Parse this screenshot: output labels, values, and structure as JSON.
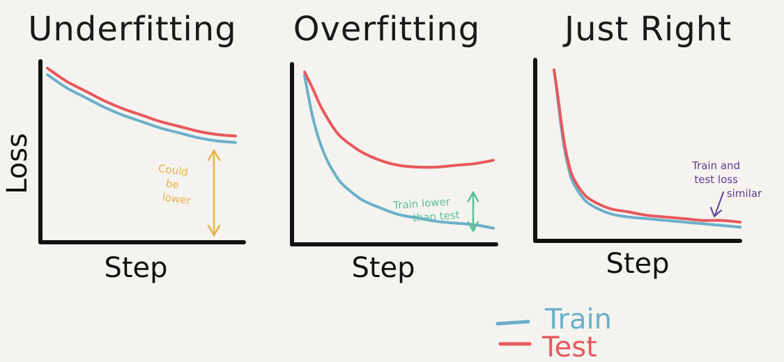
{
  "colors": {
    "train": "#6ab0c9",
    "test": "#e8585c",
    "axis": "#111111",
    "annot_under": "#e7b24a",
    "annot_over": "#5bbf98",
    "annot_right": "#5a3f8f",
    "background": "#f4f3ef"
  },
  "legend": {
    "train_label": "Train",
    "test_label": "Test"
  },
  "chart_data": [
    {
      "type": "line",
      "title": "Underfitting",
      "xlabel": "Step",
      "ylabel": "Loss",
      "grid": false,
      "x": [
        0,
        10,
        20,
        30,
        40,
        50,
        60,
        70,
        80,
        90,
        100
      ],
      "ylim": [
        0,
        100
      ],
      "series": [
        {
          "name": "Train",
          "values": [
            96,
            88,
            82,
            76,
            71,
            67,
            63,
            60,
            57,
            55,
            54
          ]
        },
        {
          "name": "Test",
          "values": [
            100,
            92,
            86,
            80,
            75,
            71,
            67,
            64,
            61,
            59,
            58
          ]
        }
      ],
      "annotations": [
        {
          "text": [
            "Could",
            "be",
            "lower"
          ],
          "color_key": "annot_under"
        }
      ]
    },
    {
      "type": "line",
      "title": "Overfitting",
      "xlabel": "Step",
      "ylabel": "",
      "grid": false,
      "x": [
        0,
        4,
        8,
        12,
        16,
        20,
        30,
        40,
        50,
        60,
        70,
        80,
        90,
        100
      ],
      "ylim": [
        0,
        100
      ],
      "series": [
        {
          "name": "Train",
          "values": [
            95,
            72,
            56,
            45,
            37,
            31,
            22,
            17,
            13,
            11,
            9,
            8,
            7,
            5
          ]
        },
        {
          "name": "Test",
          "values": [
            97,
            88,
            78,
            70,
            63,
            58,
            50,
            45,
            42,
            41,
            41,
            42,
            43,
            45
          ]
        }
      ],
      "annotations": [
        {
          "text": [
            "Train lower",
            "than test"
          ],
          "color_key": "annot_over"
        }
      ]
    },
    {
      "type": "line",
      "title": "Just Right",
      "xlabel": "Step",
      "ylabel": "",
      "grid": false,
      "x": [
        0,
        2,
        4,
        6,
        8,
        10,
        15,
        20,
        30,
        40,
        50,
        60,
        70,
        80,
        90,
        100
      ],
      "ylim": [
        0,
        100
      ],
      "series": [
        {
          "name": "Train",
          "values": [
            97,
            80,
            62,
            48,
            38,
            31,
            22,
            17,
            12,
            10,
            9,
            8,
            7,
            6,
            5,
            4
          ]
        },
        {
          "name": "Test",
          "values": [
            97,
            82,
            65,
            51,
            41,
            34,
            25,
            20,
            15,
            13,
            11,
            10,
            9,
            8,
            8,
            7
          ]
        }
      ],
      "annotations": [
        {
          "text": [
            "Train and",
            "test loss",
            "similar"
          ],
          "color_key": "annot_right"
        }
      ]
    }
  ]
}
